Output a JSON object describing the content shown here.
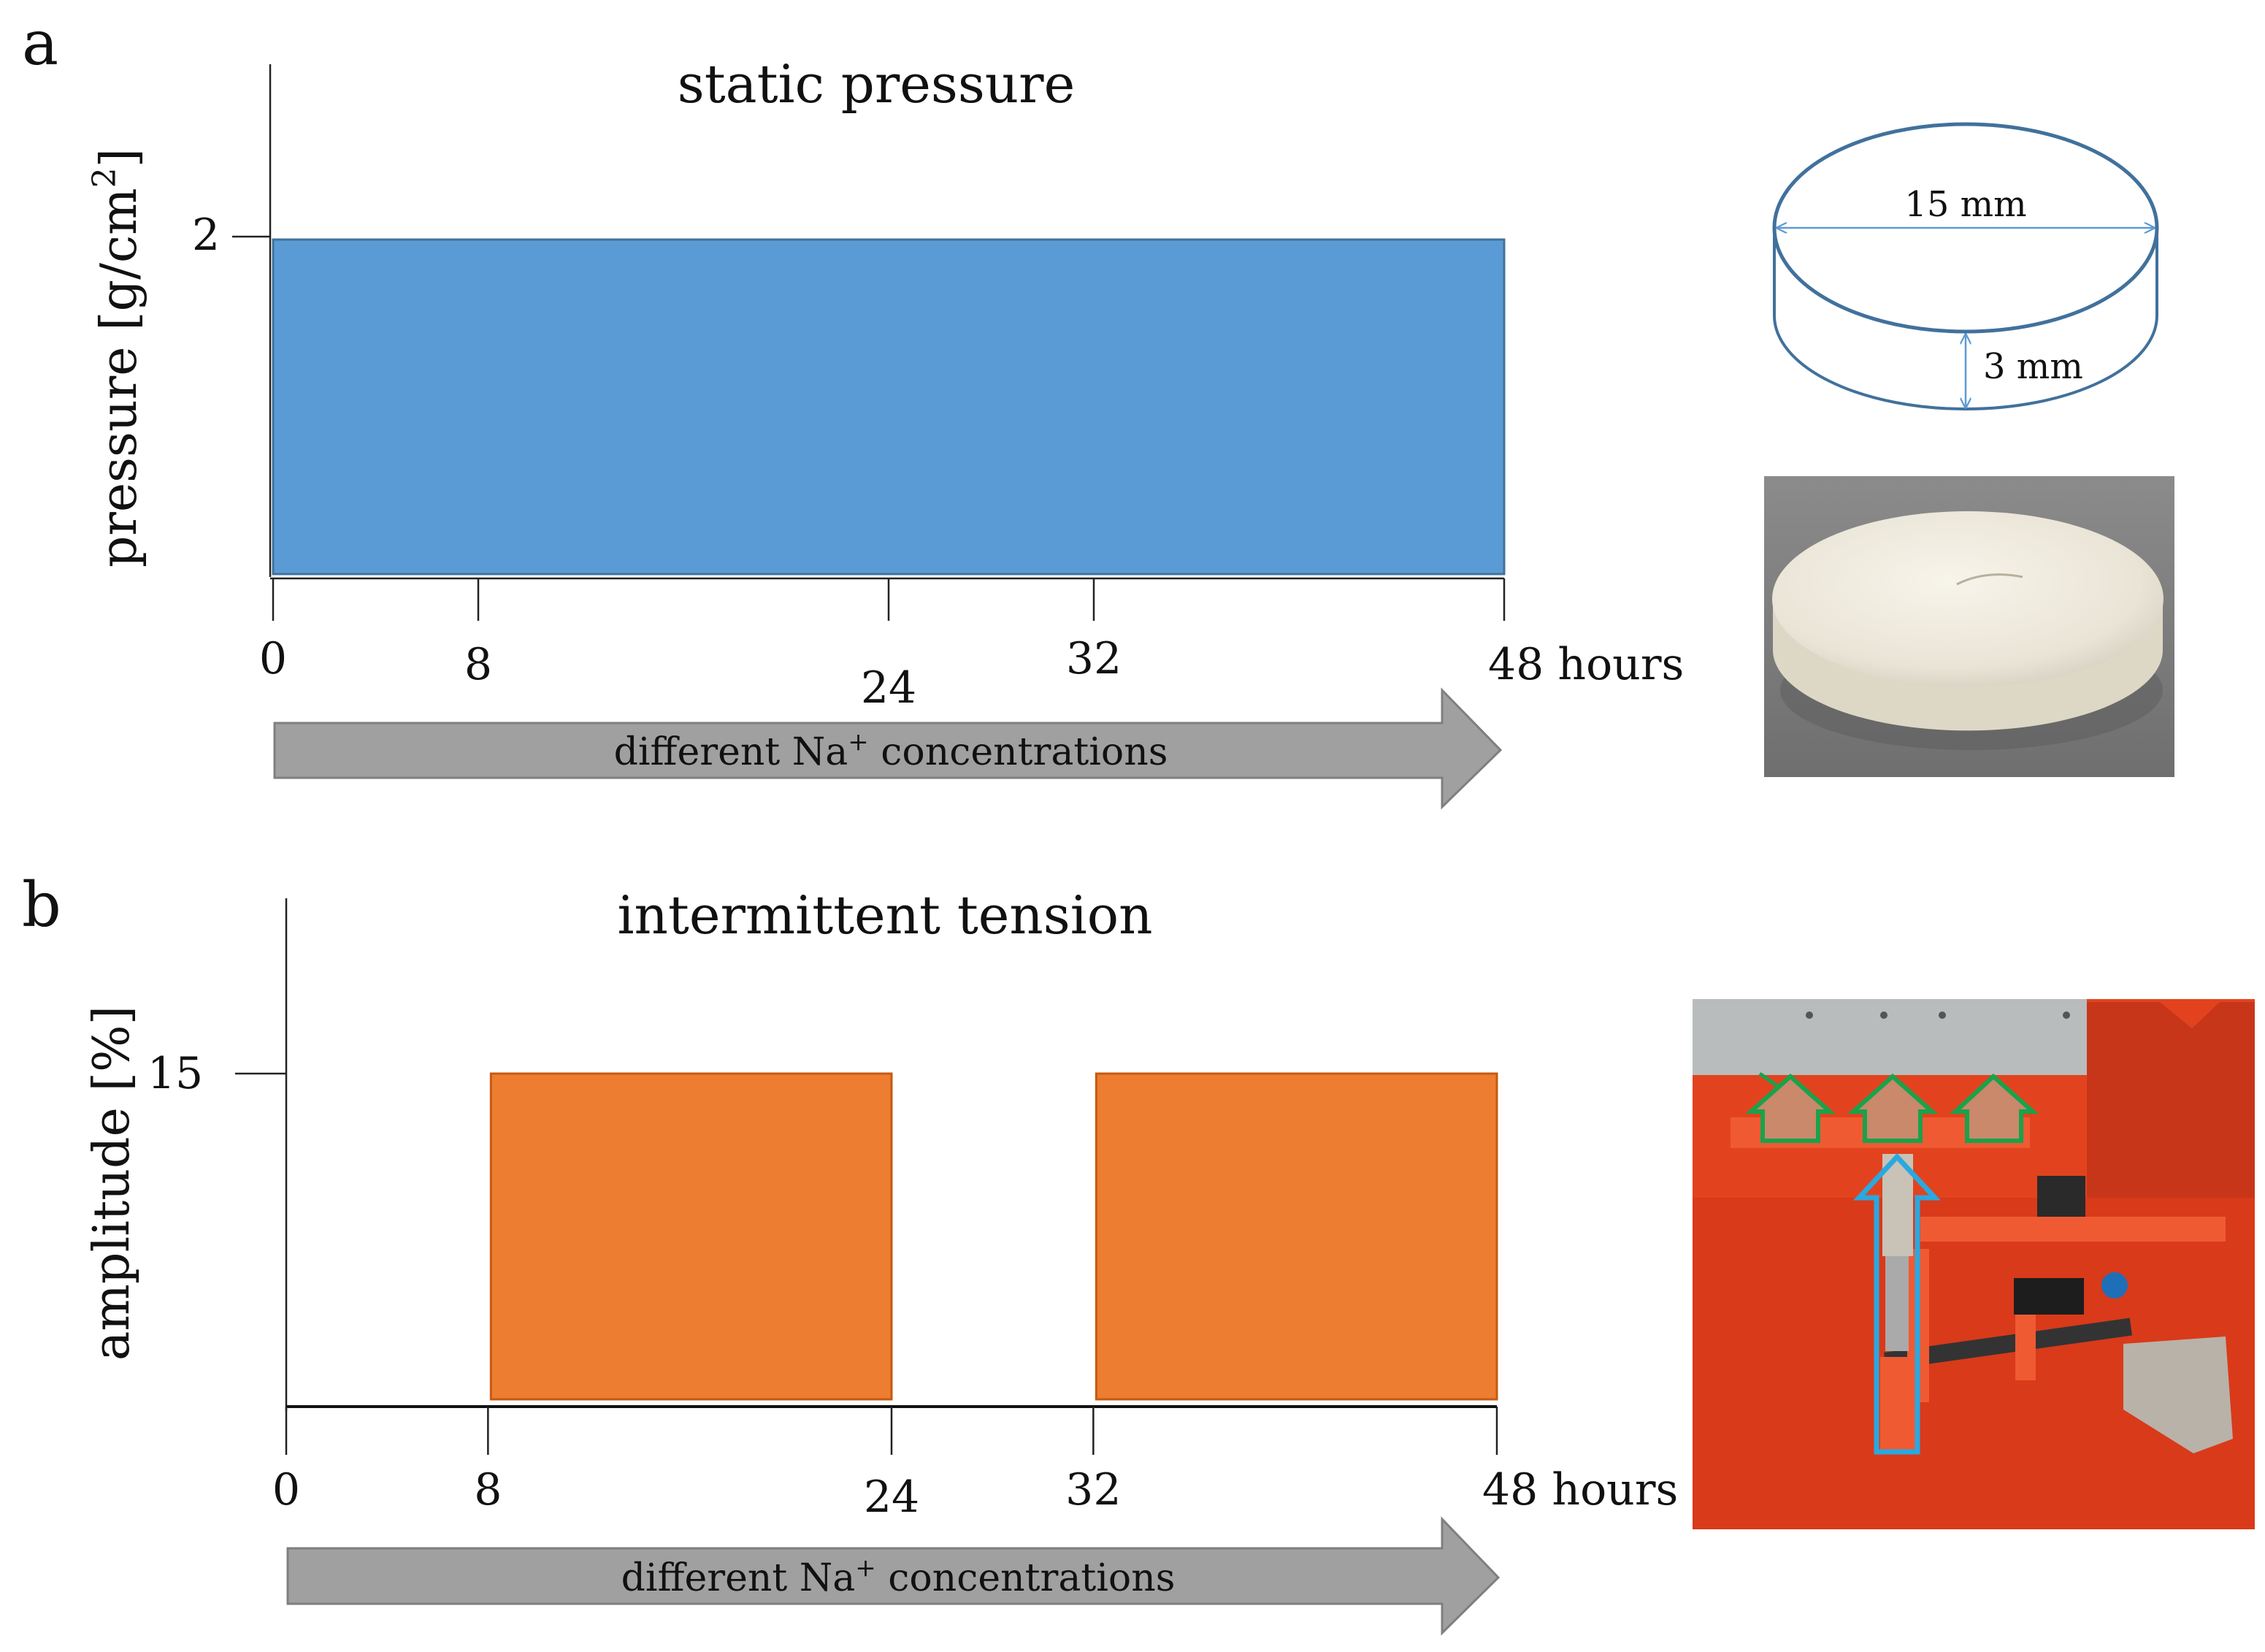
{
  "panel_a": {
    "letter": "a",
    "title": "static pressure",
    "ylabel": "pressure [g/cm",
    "ylabel_sup": "2",
    "ylabel_close": "]",
    "y_tick": "2",
    "x_ticks": [
      "0",
      "8",
      "24",
      "32",
      "48 hours"
    ],
    "arrow_label_pre": "different Na",
    "arrow_label_sup": "+",
    "arrow_label_post": " concentrations",
    "disc_diameter": "15 mm",
    "disc_height": "3 mm",
    "color": "#5b9bd5"
  },
  "panel_b": {
    "letter": "b",
    "title": "intermittent tension",
    "ylabel": "amplitude [%]",
    "y_tick": "15",
    "x_ticks": [
      "0",
      "8",
      "24",
      "32",
      "48 hours"
    ],
    "arrow_label_pre": "different Na",
    "arrow_label_sup": "+",
    "arrow_label_post": " concentrations",
    "color": "#ed7d31"
  },
  "chart_data": [
    {
      "type": "bar",
      "title": "static pressure",
      "ylabel": "pressure [g/cm2]",
      "xlabel": "hours",
      "x_ticks": [
        0,
        8,
        24,
        32,
        48
      ],
      "segments": [
        {
          "start": 0,
          "end": 48,
          "value": 2
        }
      ],
      "xlim": [
        0,
        48
      ]
    },
    {
      "type": "bar",
      "title": "intermittent tension",
      "ylabel": "amplitude [%]",
      "xlabel": "hours",
      "x_ticks": [
        0,
        8,
        24,
        32,
        48
      ],
      "segments": [
        {
          "start": 8,
          "end": 24,
          "value": 15
        },
        {
          "start": 32,
          "end": 48,
          "value": 15
        }
      ],
      "xlim": [
        0,
        48
      ]
    }
  ]
}
